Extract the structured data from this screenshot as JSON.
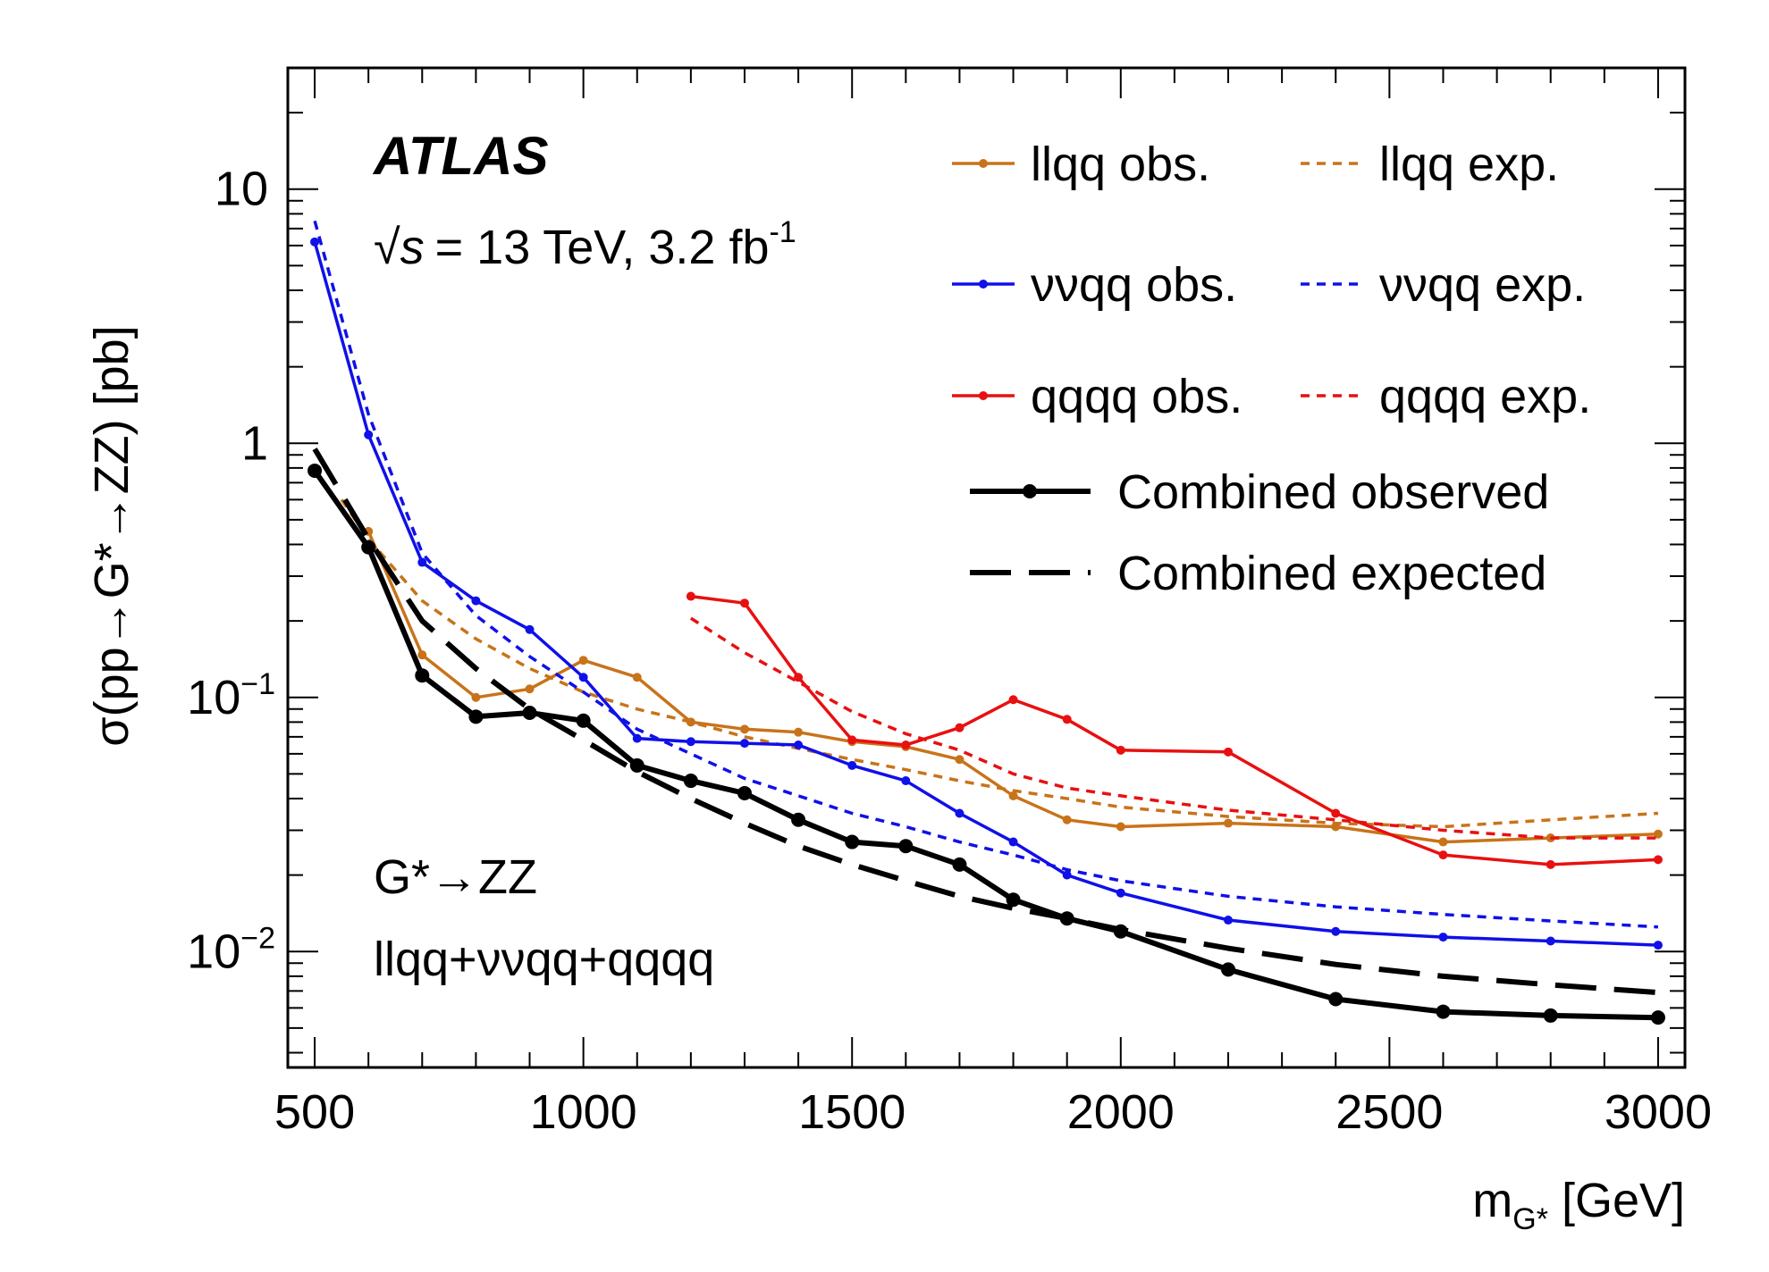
{
  "chart_data": {
    "type": "line",
    "title": "",
    "atlas_label": "ATLAS",
    "energy_sqrt": "√",
    "energy_s": "s",
    "energy_text": "= 13 TeV, 3.2 fb",
    "energy_sup": "-1",
    "process_line1": "G*→ZZ",
    "process_line2": "llqq+ννqq+qqqq",
    "ylabel": "σ(pp→G*→ZZ) [pb]",
    "xlabel_main": "m",
    "xlabel_sub": "G*",
    "xlabel_rest": " [GeV]",
    "xlim": [
      450,
      3050
    ],
    "ylim": [
      0.0035,
      30
    ],
    "yscale": "log",
    "xticks": [
      "500",
      "1000",
      "1500",
      "2000",
      "2500",
      "3000"
    ],
    "yticks": [
      {
        "base": "10",
        "exp": "",
        "value": 10
      },
      {
        "base": "1",
        "exp": "",
        "value": 1
      },
      {
        "base": "10",
        "exp": "−1",
        "value": 0.1
      },
      {
        "base": "10",
        "exp": "−2",
        "value": 0.01
      }
    ],
    "legend_position": "top-right",
    "series": [
      {
        "name": "llqq obs.",
        "color": "#c8731a",
        "style": "solid",
        "markers": true,
        "x": [
          600,
          700,
          800,
          900,
          1000,
          1100,
          1200,
          1300,
          1400,
          1500,
          1600,
          1700,
          1800,
          1900,
          2000,
          2200,
          2400,
          2600,
          2800,
          3000
        ],
        "y": [
          0.45,
          0.147,
          0.1,
          0.108,
          0.14,
          0.12,
          0.08,
          0.075,
          0.073,
          0.067,
          0.064,
          0.057,
          0.041,
          0.033,
          0.031,
          0.032,
          0.031,
          0.027,
          0.028,
          0.029
        ]
      },
      {
        "name": "llqq exp.",
        "color": "#c8731a",
        "style": "dotted",
        "markers": false,
        "x": [
          550,
          600,
          700,
          800,
          900,
          1000,
          1100,
          1200,
          1300,
          1400,
          1500,
          1600,
          1700,
          1800,
          1900,
          2000,
          2200,
          2400,
          2600,
          2800,
          3000
        ],
        "y": [
          0.6,
          0.42,
          0.24,
          0.17,
          0.13,
          0.105,
          0.09,
          0.08,
          0.07,
          0.063,
          0.057,
          0.052,
          0.047,
          0.043,
          0.04,
          0.037,
          0.034,
          0.032,
          0.031,
          0.033,
          0.035
        ]
      },
      {
        "name": "ννqq obs.",
        "color": "#1010e8",
        "style": "solid",
        "markers": true,
        "x": [
          500,
          600,
          700,
          800,
          900,
          1000,
          1100,
          1200,
          1300,
          1400,
          1500,
          1600,
          1700,
          1800,
          1900,
          2000,
          2200,
          2400,
          2600,
          2800,
          3000
        ],
        "y": [
          6.2,
          1.08,
          0.34,
          0.24,
          0.185,
          0.12,
          0.069,
          0.067,
          0.066,
          0.065,
          0.054,
          0.047,
          0.035,
          0.027,
          0.02,
          0.017,
          0.0133,
          0.012,
          0.0114,
          0.011,
          0.0106
        ]
      },
      {
        "name": "ννqq exp.",
        "color": "#1010e8",
        "style": "dotted",
        "markers": false,
        "x": [
          500,
          600,
          700,
          800,
          900,
          1000,
          1100,
          1200,
          1300,
          1400,
          1500,
          1600,
          1700,
          1800,
          1900,
          2000,
          2200,
          2400,
          2600,
          2800,
          3000
        ],
        "y": [
          7.5,
          1.3,
          0.37,
          0.21,
          0.145,
          0.105,
          0.075,
          0.06,
          0.048,
          0.041,
          0.035,
          0.031,
          0.027,
          0.024,
          0.021,
          0.019,
          0.0165,
          0.015,
          0.014,
          0.0132,
          0.0125
        ]
      },
      {
        "name": "qqqq obs.",
        "color": "#e81010",
        "style": "solid",
        "markers": true,
        "x": [
          1200,
          1300,
          1400,
          1500,
          1600,
          1700,
          1800,
          1900,
          2000,
          2200,
          2400,
          2600,
          2800,
          3000
        ],
        "y": [
          0.25,
          0.235,
          0.12,
          0.068,
          0.065,
          0.076,
          0.098,
          0.082,
          0.062,
          0.061,
          0.035,
          0.024,
          0.022,
          0.023
        ]
      },
      {
        "name": "qqqq exp.",
        "color": "#e81010",
        "style": "dotted",
        "markers": false,
        "x": [
          1200,
          1300,
          1400,
          1500,
          1600,
          1700,
          1800,
          1900,
          2000,
          2200,
          2400,
          2600,
          2800,
          3000
        ],
        "y": [
          0.205,
          0.15,
          0.115,
          0.088,
          0.072,
          0.062,
          0.05,
          0.044,
          0.041,
          0.036,
          0.033,
          0.03,
          0.028,
          0.028
        ]
      },
      {
        "name": "Combined observed",
        "color": "#000000",
        "style": "solid",
        "markers": true,
        "thick": true,
        "x": [
          500,
          600,
          700,
          800,
          900,
          1000,
          1100,
          1200,
          1300,
          1400,
          1500,
          1600,
          1700,
          1800,
          1900,
          2000,
          2200,
          2400,
          2600,
          2800,
          3000
        ],
        "y": [
          0.78,
          0.39,
          0.122,
          0.084,
          0.087,
          0.081,
          0.054,
          0.047,
          0.042,
          0.033,
          0.027,
          0.026,
          0.022,
          0.016,
          0.0135,
          0.012,
          0.0085,
          0.0065,
          0.0058,
          0.0056,
          0.0055
        ]
      },
      {
        "name": "Combined expected",
        "color": "#000000",
        "style": "dashed",
        "markers": false,
        "thick": true,
        "x": [
          500,
          600,
          700,
          800,
          900,
          1000,
          1100,
          1200,
          1300,
          1400,
          1500,
          1600,
          1700,
          1800,
          1900,
          2000,
          2200,
          2400,
          2600,
          2800,
          3000
        ],
        "y": [
          0.95,
          0.42,
          0.2,
          0.13,
          0.09,
          0.068,
          0.051,
          0.04,
          0.032,
          0.026,
          0.022,
          0.019,
          0.0165,
          0.0148,
          0.0135,
          0.0122,
          0.0103,
          0.0089,
          0.008,
          0.0074,
          0.0069
        ]
      }
    ]
  }
}
